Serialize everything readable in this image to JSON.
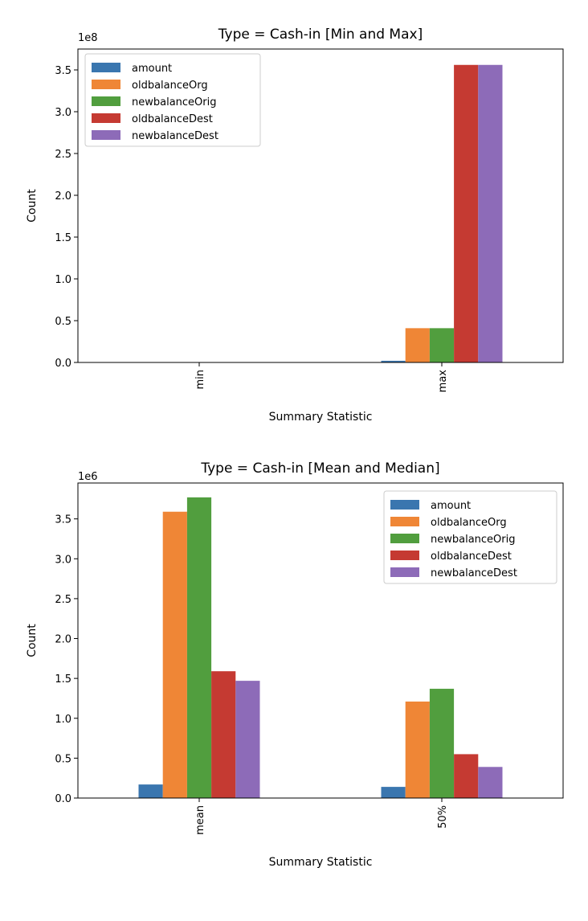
{
  "chart_data": [
    {
      "type": "bar",
      "title": "Type = Cash-in [Min and Max]",
      "xlabel": "Summary Statistic",
      "ylabel": "Count",
      "offset_label": "1e8",
      "categories": [
        "min",
        "max"
      ],
      "ylim": [
        0,
        3.75
      ],
      "yticks": [
        "0.0",
        "0.5",
        "1.0",
        "1.5",
        "2.0",
        "2.5",
        "3.0",
        "3.5"
      ],
      "legend_position": "upper-left",
      "series": [
        {
          "name": "amount",
          "color": "#3a76af",
          "values": [
            0.0,
            0.02
          ]
        },
        {
          "name": "oldbalanceOrg",
          "color": "#ef8636",
          "values": [
            0.0,
            0.41
          ]
        },
        {
          "name": "newbalanceOrig",
          "color": "#519e3e",
          "values": [
            0.0,
            0.41
          ]
        },
        {
          "name": "oldbalanceDest",
          "color": "#c53a32",
          "values": [
            0.0,
            3.56
          ]
        },
        {
          "name": "newbalanceDest",
          "color": "#8d6bb8",
          "values": [
            0.0,
            3.56
          ]
        }
      ]
    },
    {
      "type": "bar",
      "title": "Type = Cash-in [Mean and Median]",
      "xlabel": "Summary Statistic",
      "ylabel": "Count",
      "offset_label": "1e6",
      "categories": [
        "mean",
        "50%"
      ],
      "ylim": [
        0,
        3.95
      ],
      "yticks": [
        "0.0",
        "0.5",
        "1.0",
        "1.5",
        "2.0",
        "2.5",
        "3.0",
        "3.5"
      ],
      "legend_position": "upper-right",
      "series": [
        {
          "name": "amount",
          "color": "#3a76af",
          "values": [
            0.17,
            0.14
          ]
        },
        {
          "name": "oldbalanceOrg",
          "color": "#ef8636",
          "values": [
            3.59,
            1.21
          ]
        },
        {
          "name": "newbalanceOrig",
          "color": "#519e3e",
          "values": [
            3.77,
            1.37
          ]
        },
        {
          "name": "oldbalanceDest",
          "color": "#c53a32",
          "values": [
            1.59,
            0.55
          ]
        },
        {
          "name": "newbalanceDest",
          "color": "#8d6bb8",
          "values": [
            1.47,
            0.39
          ]
        }
      ]
    }
  ]
}
